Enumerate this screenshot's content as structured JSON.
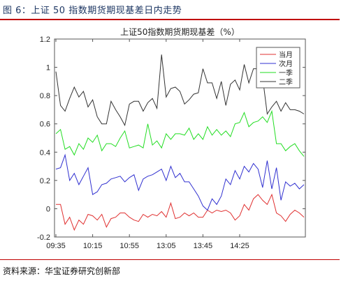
{
  "figure": {
    "title": "图 6：上证 50 指数期货期现基差日内走势",
    "source": "资料来源：华宝证券研究创新部"
  },
  "colors": {
    "accent_rule": "#c00000",
    "title_text": "#1f3864"
  },
  "chart_data": {
    "type": "line",
    "title": "上证50指数期货期现基差（%）",
    "xlabel": "",
    "ylabel": "",
    "x_tick_labels": [
      "09:35",
      "10:15",
      "10:55",
      "13:05",
      "13:45",
      "14:25"
    ],
    "ylim": [
      -0.2,
      1.2
    ],
    "yticks": [
      -0.2,
      0,
      0.2,
      0.4,
      0.6,
      0.8,
      1,
      1.2
    ],
    "ytick_labels": [
      "-0.2",
      "0",
      "0.2",
      "0.4",
      "0.6",
      "0.8",
      "1",
      "1.2"
    ],
    "grid": false,
    "legend_position": "top-right",
    "series": [
      {
        "name": "当月",
        "color": "#e03030",
        "values": [
          0.03,
          0.03,
          -0.11,
          -0.06,
          -0.15,
          -0.08,
          -0.11,
          -0.04,
          -0.05,
          -0.08,
          -0.04,
          -0.13,
          -0.07,
          -0.06,
          -0.03,
          -0.03,
          -0.06,
          -0.08,
          -0.09,
          -0.04,
          -0.06,
          -0.04,
          -0.05,
          -0.02,
          -0.06,
          0.04,
          -0.07,
          -0.06,
          -0.03,
          -0.05,
          -0.03,
          -0.06,
          -0.06,
          -0.01,
          -0.03,
          -0.01,
          -0.02,
          -0.01,
          -0.03,
          -0.08,
          -0.05,
          0.03,
          -0.01,
          0.07,
          0.1,
          0.06,
          0.03,
          0.1,
          -0.03,
          -0.05,
          -0.09,
          -0.04,
          -0.01,
          -0.03,
          -0.06
        ]
      },
      {
        "name": "次月",
        "color": "#3030d0",
        "values": [
          0.28,
          0.29,
          0.38,
          0.2,
          0.25,
          0.17,
          0.23,
          0.29,
          0.1,
          0.12,
          0.17,
          0.18,
          0.21,
          0.22,
          0.23,
          0.19,
          0.22,
          0.24,
          0.13,
          0.21,
          0.23,
          0.24,
          0.26,
          0.28,
          0.2,
          0.3,
          0.22,
          0.25,
          0.19,
          0.19,
          0.14,
          0.09,
          0.02,
          -0.01,
          0.07,
          0.03,
          0.09,
          0.21,
          0.17,
          0.27,
          0.21,
          0.3,
          0.26,
          0.32,
          0.28,
          0.15,
          0.34,
          0.14,
          0.29,
          0.06,
          0.19,
          0.16,
          0.18,
          0.14,
          0.17
        ]
      },
      {
        "name": "一季",
        "color": "#22dd22",
        "values": [
          0.53,
          0.56,
          0.42,
          0.44,
          0.38,
          0.46,
          0.42,
          0.5,
          0.47,
          0.52,
          0.41,
          0.46,
          0.46,
          0.44,
          0.5,
          0.55,
          0.43,
          0.44,
          0.45,
          0.43,
          0.6,
          0.45,
          0.48,
          0.43,
          0.53,
          0.49,
          0.53,
          0.53,
          0.52,
          0.57,
          0.49,
          0.53,
          0.49,
          0.58,
          0.52,
          0.56,
          0.52,
          0.55,
          0.51,
          0.6,
          0.61,
          0.68,
          0.58,
          0.61,
          0.62,
          0.65,
          0.61,
          0.69,
          0.46,
          0.46,
          0.41,
          0.44,
          0.46,
          0.41,
          0.37
        ]
      },
      {
        "name": "二季",
        "color": "#333333",
        "values": [
          0.97,
          0.73,
          0.69,
          0.78,
          0.86,
          0.79,
          0.83,
          0.72,
          0.77,
          0.65,
          0.6,
          0.6,
          0.76,
          0.7,
          0.65,
          0.59,
          0.74,
          0.76,
          0.76,
          0.69,
          0.75,
          0.78,
          0.71,
          1.09,
          0.79,
          0.85,
          0.86,
          0.83,
          0.74,
          0.77,
          0.81,
          0.82,
          0.99,
          0.89,
          0.89,
          0.78,
          0.9,
          0.73,
          0.88,
          0.91,
          0.84,
          1.02,
          0.89,
          0.99,
          0.99,
          0.93,
          0.67,
          0.72,
          0.76,
          0.69,
          0.75,
          0.7,
          0.7,
          0.69,
          0.67
        ]
      }
    ]
  }
}
